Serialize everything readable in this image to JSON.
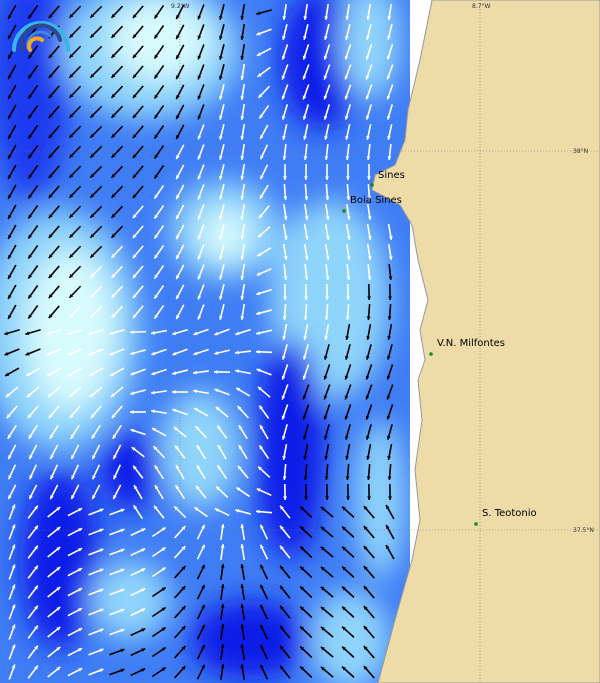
{
  "map": {
    "grid_labels": {
      "lon_left": "9.2°W",
      "lon_right": "8.7°W",
      "lat_top": "38°N",
      "lat_bottom": "37.5°N"
    },
    "places": [
      {
        "name": "Sines"
      },
      {
        "name": "Boia Sines"
      },
      {
        "name": "V.N. Milfontes"
      },
      {
        "name": "S. Teotonio"
      }
    ],
    "colors": {
      "land": "#eddba8",
      "ocean_dark": "#0a1ee8",
      "ocean_mid": "#3f7df5",
      "ocean_light": "#8fd4fb",
      "ocean_pale": "#d8fbfd",
      "marker": "#1a8a1a"
    },
    "logo": "wave-gauge-logo"
  }
}
